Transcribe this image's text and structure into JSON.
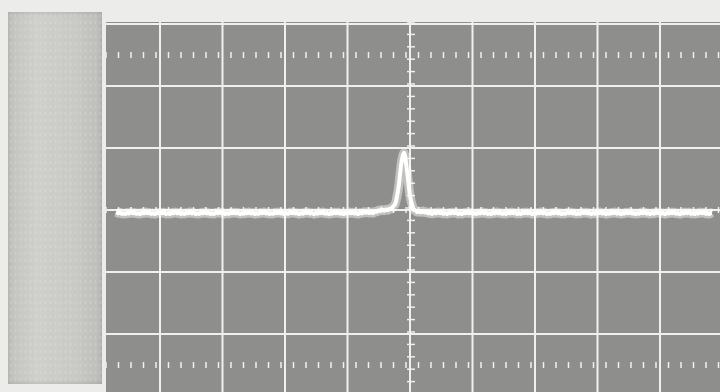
{
  "scene": {
    "subject": "oscilloscope-trace-photo",
    "colors": {
      "background": "#ececea",
      "tape": "#c9c9c5",
      "screen": "#8e8e8c",
      "graticule": "#f0f0ee",
      "trace": "#ffffff"
    },
    "graticule": {
      "major_divisions_x": 10,
      "major_divisions_y": 6,
      "minor_ticks_per_division": 5
    },
    "trace": {
      "baseline_level_div": -0.05,
      "peak_height_div": 0.9,
      "peak_position_div": 3.9,
      "peak_width_div": 0.12
    }
  }
}
